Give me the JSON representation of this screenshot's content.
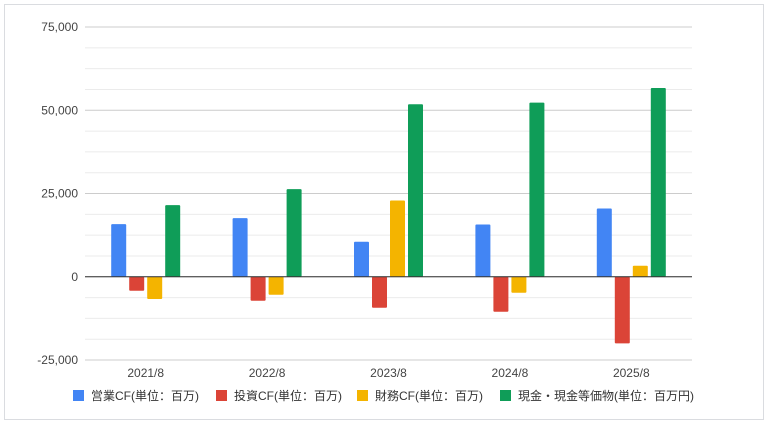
{
  "chart_data": {
    "type": "bar",
    "categories": [
      "2021/8",
      "2022/8",
      "2023/8",
      "2024/8",
      "2025/8"
    ],
    "series": [
      {
        "name": "営業CF(単位：百万)",
        "color": "#4285f4",
        "values": [
          15800,
          17600,
          10500,
          15700,
          20500
        ]
      },
      {
        "name": "投資CF(単位：百万)",
        "color": "#db4437",
        "values": [
          -4200,
          -7200,
          -9300,
          -10500,
          -20000
        ]
      },
      {
        "name": "財務CF(単位：百万)",
        "color": "#f4b400",
        "values": [
          -6700,
          -5400,
          22900,
          -4800,
          3300
        ]
      },
      {
        "name": "現金・現金等価物(単位：百万円)",
        "color": "#0f9d58",
        "values": [
          21500,
          26300,
          51800,
          52300,
          56700
        ]
      }
    ],
    "ylim": [
      -25000,
      75000
    ],
    "yticks": [
      -25000,
      0,
      25000,
      50000,
      75000
    ],
    "ytick_labels": [
      "-25,000",
      "0",
      "25,000",
      "50,000",
      "75,000"
    ],
    "minor_gridlines": true,
    "grid": true,
    "legend_position": "bottom"
  }
}
